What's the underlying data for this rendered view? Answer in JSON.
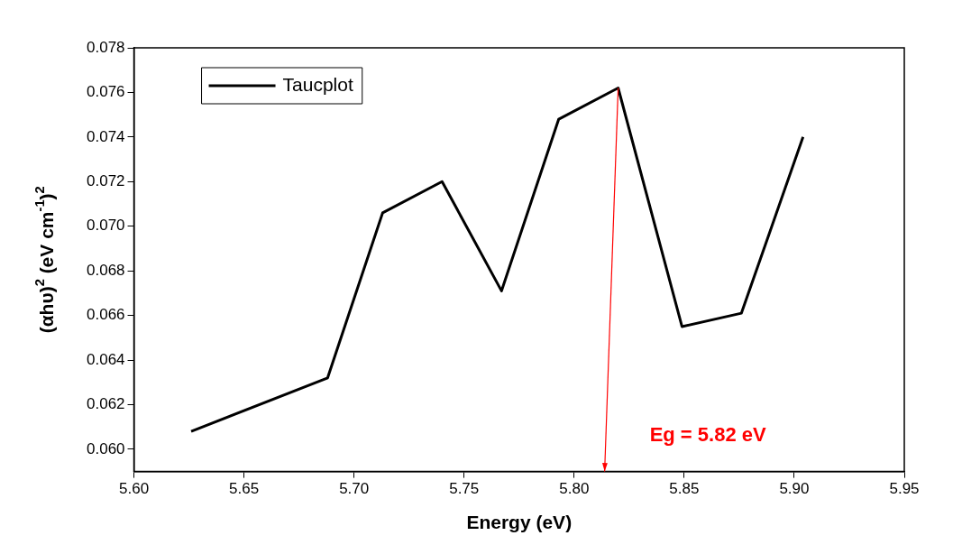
{
  "chart_data": {
    "type": "line",
    "xlabel": "Energy (eV)",
    "ylabel": "(αhυ)$^{2}$ (eV cm$^{-1}$)$^{2}$",
    "x": [
      5.626,
      5.688,
      5.713,
      5.74,
      5.767,
      5.793,
      5.82,
      5.849,
      5.876,
      5.904
    ],
    "series": [
      {
        "name": "Taucplot",
        "color": "#000000",
        "values": [
          0.0608,
          0.0632,
          0.0706,
          0.072,
          0.0671,
          0.0748,
          0.0762,
          0.0655,
          0.0661,
          0.074
        ]
      }
    ],
    "xlim": [
      5.6,
      5.95
    ],
    "ylim": [
      0.059,
      0.078
    ],
    "xticks": [
      {
        "value": 5.6,
        "label": "5.60"
      },
      {
        "value": 5.65,
        "label": "5.65"
      },
      {
        "value": 5.7,
        "label": "5.70"
      },
      {
        "value": 5.75,
        "label": "5.75"
      },
      {
        "value": 5.8,
        "label": "5.80"
      },
      {
        "value": 5.85,
        "label": "5.85"
      },
      {
        "value": 5.9,
        "label": "5.90"
      },
      {
        "value": 5.95,
        "label": "5.95"
      }
    ],
    "yticks": [
      {
        "value": 0.06,
        "label": "0.060"
      },
      {
        "value": 0.062,
        "label": "0.062"
      },
      {
        "value": 0.064,
        "label": "0.064"
      },
      {
        "value": 0.066,
        "label": "0.066"
      },
      {
        "value": 0.068,
        "label": "0.068"
      },
      {
        "value": 0.07,
        "label": "0.070"
      },
      {
        "value": 0.072,
        "label": "0.072"
      },
      {
        "value": 0.074,
        "label": "0.074"
      },
      {
        "value": 0.076,
        "label": "0.076"
      },
      {
        "value": 0.078,
        "label": "0.078"
      }
    ],
    "annotations": [
      "Eg = 5.82 eV"
    ],
    "legend": "top left",
    "grid": false
  }
}
